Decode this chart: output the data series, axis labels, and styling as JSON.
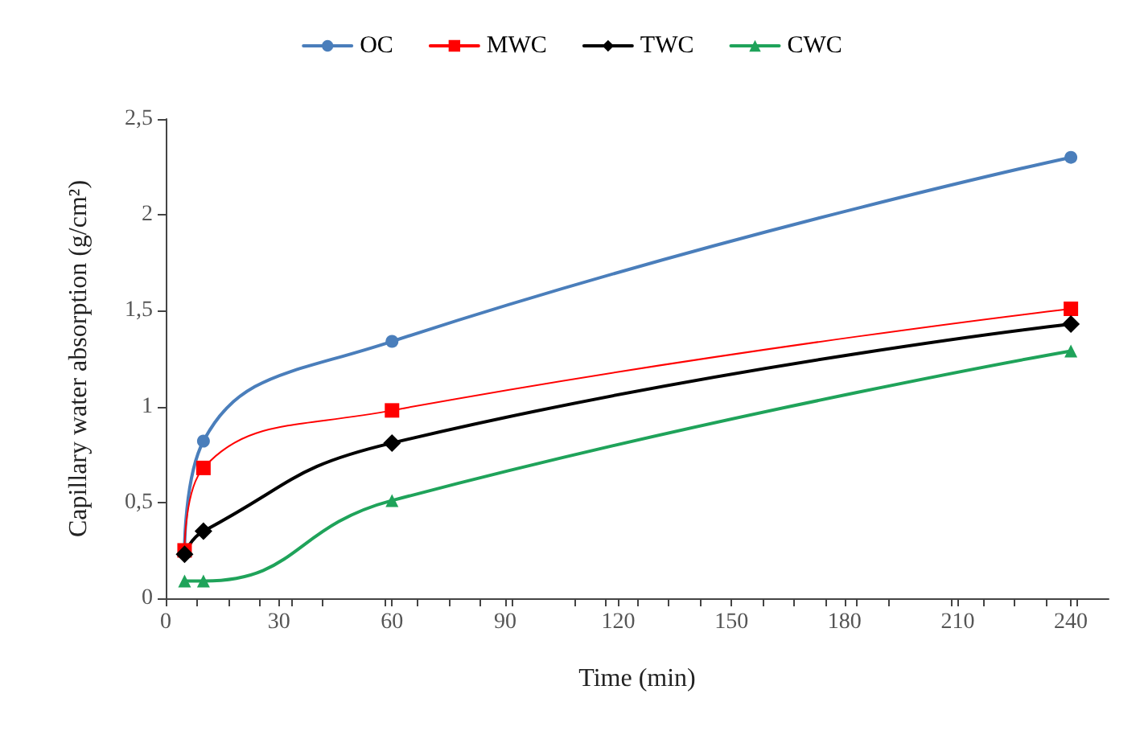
{
  "chart_data": {
    "type": "line",
    "xlabel": "Time (min)",
    "ylabel": "Capillary water absorption (g/cm²)",
    "x": [
      5,
      10,
      60,
      240
    ],
    "series": [
      {
        "name": "OC",
        "color": "#4a7ebb",
        "marker": "circle",
        "values": [
          0.25,
          0.82,
          1.34,
          2.3
        ]
      },
      {
        "name": "MWC",
        "color": "#ff0000",
        "marker": "square",
        "values": [
          0.25,
          0.68,
          0.98,
          1.51
        ]
      },
      {
        "name": "TWC",
        "color": "#000000",
        "marker": "diamond",
        "values": [
          0.23,
          0.35,
          0.81,
          1.43
        ]
      },
      {
        "name": "CWC",
        "color": "#1fa35a",
        "marker": "triangle",
        "values": [
          0.09,
          0.09,
          0.51,
          1.29
        ]
      }
    ],
    "xlim": [
      0,
      250
    ],
    "xticks": [
      0,
      30,
      60,
      90,
      120,
      150,
      180,
      210,
      240
    ],
    "ylim": [
      0,
      2.5
    ],
    "yticks": [
      0,
      {
        "value": 0.5,
        "label": "0,5"
      },
      1,
      {
        "value": 1.5,
        "label": "1,5"
      },
      2,
      {
        "value": 2.5,
        "label": "2,5"
      }
    ],
    "grid": false,
    "legend": "top"
  }
}
